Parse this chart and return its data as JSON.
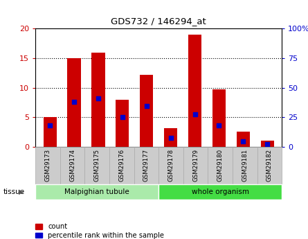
{
  "title": "GDS732 / 146294_at",
  "samples": [
    "GSM29173",
    "GSM29174",
    "GSM29175",
    "GSM29176",
    "GSM29177",
    "GSM29178",
    "GSM29179",
    "GSM29180",
    "GSM29181",
    "GSM29182"
  ],
  "count_values": [
    5,
    15,
    16,
    8,
    12.2,
    3.2,
    19,
    9.7,
    2.6,
    1.1
  ],
  "percentile_values": [
    3.7,
    7.6,
    8.2,
    5.0,
    6.9,
    1.5,
    5.5,
    3.6,
    1.0,
    0.5
  ],
  "ylim_left": [
    0,
    20
  ],
  "ylim_right": [
    0,
    100
  ],
  "yticks_left": [
    0,
    5,
    10,
    15,
    20
  ],
  "yticks_right": [
    0,
    25,
    50,
    75,
    100
  ],
  "ytick_labels_right": [
    "0",
    "25",
    "50",
    "75",
    "100%"
  ],
  "groups": [
    {
      "label": "Malpighian tubule",
      "start": 0,
      "end": 5
    },
    {
      "label": "whole organism",
      "start": 5,
      "end": 10
    }
  ],
  "group_colors": [
    "#aaeaaa",
    "#44dd44"
  ],
  "tissue_label": "tissue",
  "bar_color": "#cc0000",
  "dot_color": "#0000cc",
  "bar_width": 0.55,
  "grid_color": "#000000",
  "bg_color": "#ffffff",
  "tick_bg": "#cccccc",
  "legend_count_label": "count",
  "legend_pct_label": "percentile rank within the sample",
  "left_tick_color": "#cc0000",
  "right_tick_color": "#0000cc"
}
